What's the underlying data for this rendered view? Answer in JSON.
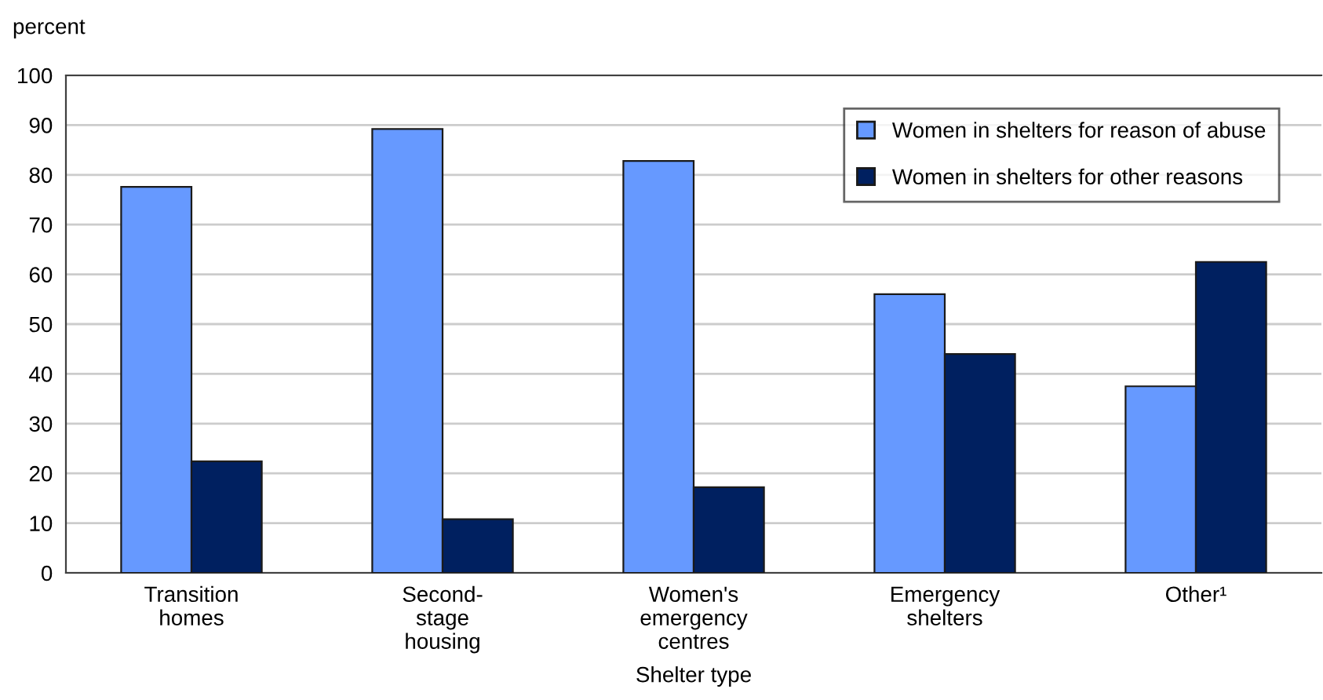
{
  "chart_data": {
    "type": "bar",
    "ylabel": "percent",
    "xlabel": "Shelter type",
    "categories": [
      "Transition\nhomes",
      "Second-\nstage\nhousing",
      "Women's\nemergency\ncentres",
      "Emergency\nshelters",
      "Other¹"
    ],
    "series": [
      {
        "name": "Women in shelters for reason of abuse",
        "color": "#6699ff",
        "values": [
          77.6,
          89.2,
          82.8,
          56.0,
          37.5
        ]
      },
      {
        "name": "Women in shelters for other reasons",
        "color": "#002060",
        "values": [
          22.4,
          10.8,
          17.2,
          44.0,
          62.5
        ]
      }
    ],
    "ylim": [
      0,
      100
    ],
    "yticks": [
      0,
      10,
      20,
      30,
      40,
      50,
      60,
      70,
      80,
      90,
      100
    ],
    "grid": "y",
    "legend": "top right"
  }
}
